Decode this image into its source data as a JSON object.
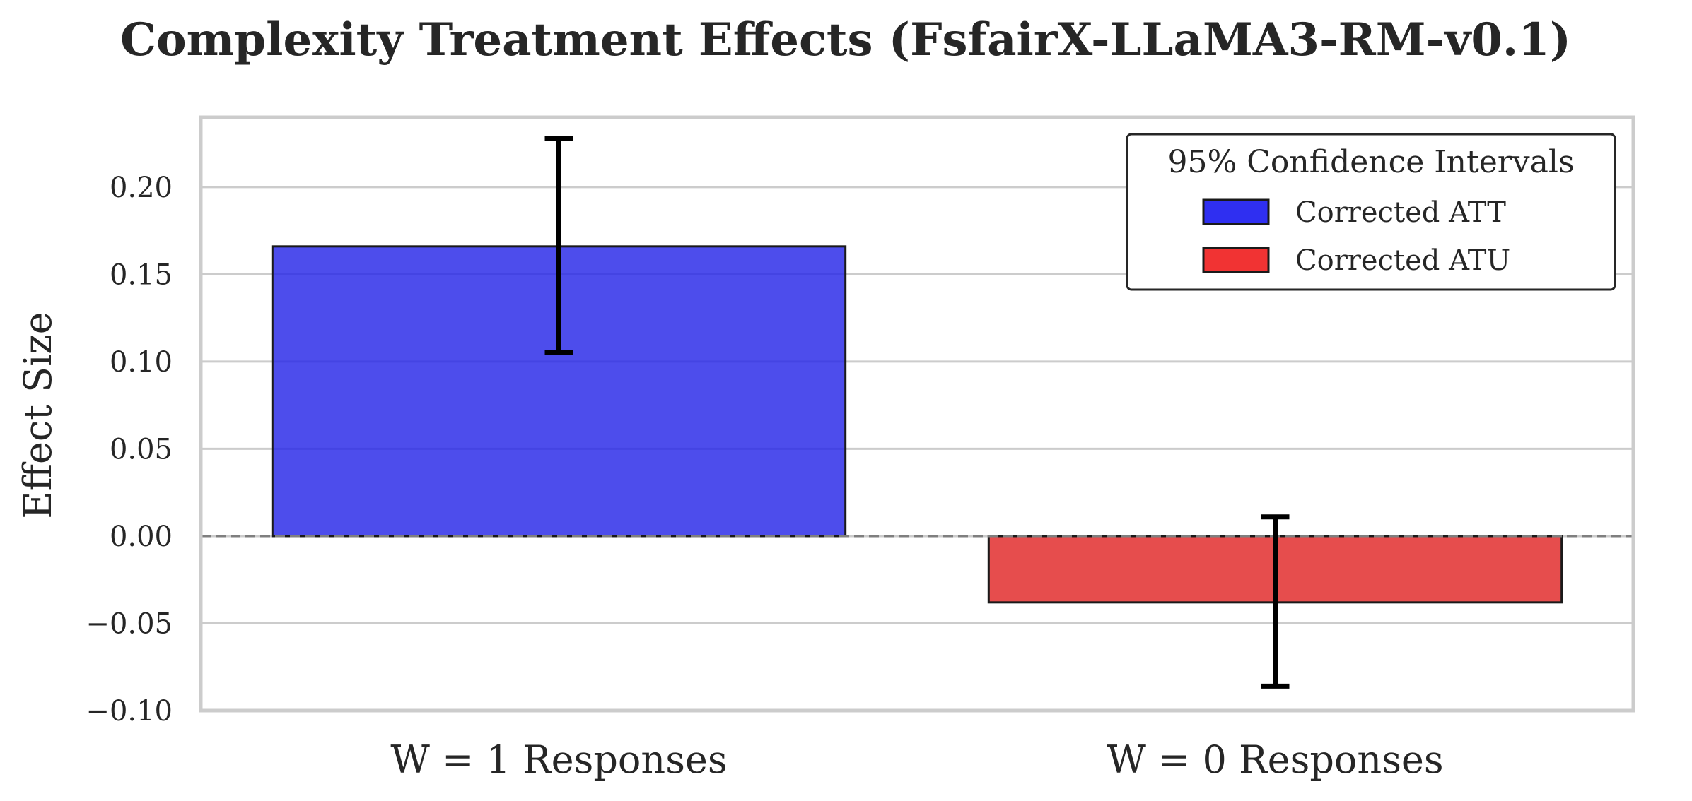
{
  "chart_data": {
    "type": "bar",
    "title": "Complexity Treatment Effects (FsfairX-LLaMA3-RM-v0.1)",
    "xlabel": "",
    "ylabel": "Effect Size",
    "categories": [
      "W = 1 Responses",
      "W = 0 Responses"
    ],
    "values": [
      0.166,
      -0.038
    ],
    "ci_lower": [
      0.105,
      -0.086
    ],
    "ci_upper": [
      0.228,
      0.011
    ],
    "colors": [
      "#2626E8",
      "#E02626"
    ],
    "ylim": [
      -0.1,
      0.24
    ],
    "yticks": [
      -0.1,
      -0.05,
      0.0,
      0.05,
      0.1,
      0.15,
      0.2
    ],
    "ytick_labels": [
      "−0.10",
      "−0.05",
      "0.00",
      "0.05",
      "0.10",
      "0.15",
      "0.20"
    ],
    "reference_line": 0,
    "grid": "horizontal",
    "legend": {
      "title": "95% Confidence Intervals",
      "placement": "top-right",
      "entries": [
        {
          "label": "Corrected ATT",
          "color": "#2424F0"
        },
        {
          "label": "Corrected ATU",
          "color": "#F02828"
        }
      ]
    }
  }
}
